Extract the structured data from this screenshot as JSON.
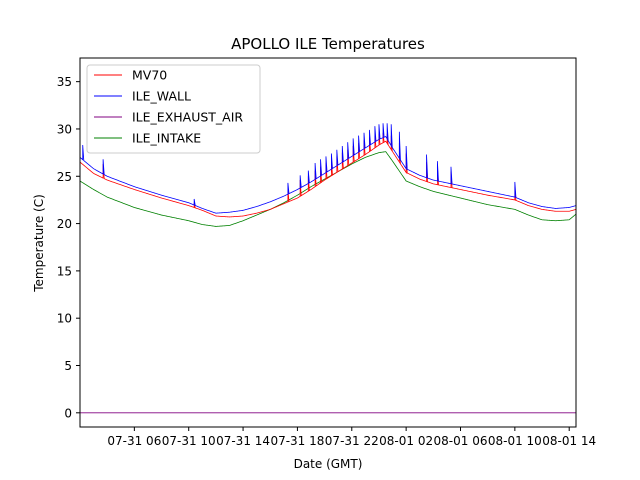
{
  "chart_data": {
    "type": "line",
    "title": "APOLLO ILE Temperatures",
    "xlabel": "Date (GMT)",
    "ylabel": "Temperature (C)",
    "xlim_hours": [
      2.0,
      38.5
    ],
    "ylim": [
      -1.5,
      37.5
    ],
    "yticks": [
      0,
      5,
      10,
      15,
      20,
      25,
      30,
      35
    ],
    "xticks": [
      {
        "hours": 6,
        "label": "07-31 06"
      },
      {
        "hours": 10,
        "label": "07-31 10"
      },
      {
        "hours": 14,
        "label": "07-31 14"
      },
      {
        "hours": 18,
        "label": "07-31 18"
      },
      {
        "hours": 22,
        "label": "07-31 22"
      },
      {
        "hours": 26,
        "label": "08-01 02"
      },
      {
        "hours": 30,
        "label": "08-01 06"
      },
      {
        "hours": 34,
        "label": "08-01 10"
      },
      {
        "hours": 38,
        "label": "08-01 14"
      }
    ],
    "legend_position": "top-left",
    "series": [
      {
        "name": "MV70",
        "color": "#ff0000",
        "x": [
          2.0,
          3.0,
          4.0,
          6.0,
          8.0,
          10.0,
          11.0,
          12.0,
          13.0,
          14.0,
          15.0,
          16.0,
          17.0,
          18.0,
          19.0,
          20.0,
          21.0,
          22.0,
          23.0,
          24.0,
          24.5,
          25.0,
          26.0,
          27.0,
          28.0,
          30.0,
          32.0,
          34.0,
          35.0,
          36.0,
          37.0,
          38.0,
          38.5
        ],
        "values": [
          26.5,
          25.3,
          24.6,
          23.6,
          22.7,
          21.9,
          21.4,
          20.8,
          20.7,
          20.8,
          21.1,
          21.5,
          22.1,
          22.7,
          23.6,
          24.6,
          25.5,
          26.4,
          27.3,
          28.3,
          28.7,
          27.6,
          25.4,
          24.7,
          24.2,
          23.6,
          23.0,
          22.5,
          21.9,
          21.5,
          21.3,
          21.3,
          21.5
        ],
        "spikes": [
          {
            "x": 3.7,
            "y": 26.3
          },
          {
            "x": 10.4,
            "y": 22.2
          },
          {
            "x": 17.3,
            "y": 23.6
          },
          {
            "x": 18.2,
            "y": 24.6
          },
          {
            "x": 18.8,
            "y": 25.0
          },
          {
            "x": 19.3,
            "y": 25.6
          },
          {
            "x": 19.7,
            "y": 26.0
          },
          {
            "x": 20.1,
            "y": 26.4
          },
          {
            "x": 20.5,
            "y": 26.7
          },
          {
            "x": 20.9,
            "y": 27.1
          },
          {
            "x": 21.3,
            "y": 27.5
          },
          {
            "x": 21.7,
            "y": 27.8
          },
          {
            "x": 22.1,
            "y": 28.2
          },
          {
            "x": 22.5,
            "y": 28.5
          },
          {
            "x": 22.9,
            "y": 28.8
          },
          {
            "x": 23.3,
            "y": 29.1
          },
          {
            "x": 23.7,
            "y": 29.3
          },
          {
            "x": 24.0,
            "y": 29.5
          },
          {
            "x": 24.3,
            "y": 29.6
          },
          {
            "x": 24.6,
            "y": 29.5
          },
          {
            "x": 24.9,
            "y": 29.3
          },
          {
            "x": 25.5,
            "y": 28.5
          },
          {
            "x": 26.0,
            "y": 27.4
          },
          {
            "x": 27.5,
            "y": 26.5
          },
          {
            "x": 28.3,
            "y": 26.1
          },
          {
            "x": 29.3,
            "y": 25.5
          },
          {
            "x": 34.0,
            "y": 23.9
          }
        ]
      },
      {
        "name": "ILE_WALL",
        "color": "#0000ff",
        "x": [
          2.0,
          3.0,
          4.0,
          6.0,
          8.0,
          10.0,
          11.0,
          12.0,
          13.0,
          14.0,
          15.0,
          16.0,
          17.0,
          18.0,
          19.0,
          20.0,
          21.0,
          22.0,
          23.0,
          24.0,
          24.5,
          25.0,
          26.0,
          27.0,
          28.0,
          30.0,
          32.0,
          34.0,
          35.0,
          36.0,
          37.0,
          38.0,
          38.5
        ],
        "values": [
          27.0,
          25.8,
          25.0,
          23.9,
          23.0,
          22.2,
          21.6,
          21.1,
          21.2,
          21.4,
          21.8,
          22.3,
          22.9,
          23.6,
          24.4,
          25.3,
          26.2,
          27.1,
          28.0,
          28.9,
          29.2,
          28.0,
          25.8,
          25.1,
          24.6,
          24.0,
          23.4,
          22.8,
          22.2,
          21.8,
          21.6,
          21.7,
          21.9
        ],
        "spikes": [
          {
            "x": 2.2,
            "y": 28.3
          },
          {
            "x": 3.7,
            "y": 26.8
          },
          {
            "x": 10.4,
            "y": 22.6
          },
          {
            "x": 17.3,
            "y": 24.3
          },
          {
            "x": 18.2,
            "y": 25.1
          },
          {
            "x": 18.8,
            "y": 25.6
          },
          {
            "x": 19.3,
            "y": 26.4
          },
          {
            "x": 19.7,
            "y": 26.8
          },
          {
            "x": 20.1,
            "y": 27.1
          },
          {
            "x": 20.5,
            "y": 27.4
          },
          {
            "x": 20.9,
            "y": 27.8
          },
          {
            "x": 21.3,
            "y": 28.2
          },
          {
            "x": 21.7,
            "y": 28.6
          },
          {
            "x": 22.1,
            "y": 29.0
          },
          {
            "x": 22.5,
            "y": 29.3
          },
          {
            "x": 22.9,
            "y": 29.6
          },
          {
            "x": 23.3,
            "y": 29.9
          },
          {
            "x": 23.7,
            "y": 30.3
          },
          {
            "x": 24.0,
            "y": 30.5
          },
          {
            "x": 24.3,
            "y": 30.6
          },
          {
            "x": 24.6,
            "y": 30.6
          },
          {
            "x": 24.9,
            "y": 30.5
          },
          {
            "x": 25.5,
            "y": 29.7
          },
          {
            "x": 26.0,
            "y": 28.2
          },
          {
            "x": 27.5,
            "y": 27.3
          },
          {
            "x": 28.3,
            "y": 26.6
          },
          {
            "x": 29.3,
            "y": 26.0
          },
          {
            "x": 34.0,
            "y": 24.4
          }
        ]
      },
      {
        "name": "ILE_EXHAUST_AIR",
        "color": "#800080",
        "x": [
          2.0,
          38.5
        ],
        "values": [
          0.0,
          0.0
        ],
        "spikes": []
      },
      {
        "name": "ILE_INTAKE",
        "color": "#008000",
        "x": [
          2.0,
          3.0,
          4.0,
          6.0,
          8.0,
          10.0,
          11.0,
          12.0,
          13.0,
          14.0,
          15.0,
          16.0,
          17.0,
          18.0,
          19.0,
          20.0,
          21.0,
          22.0,
          23.0,
          24.0,
          24.5,
          25.0,
          26.0,
          27.0,
          28.0,
          30.0,
          32.0,
          34.0,
          35.0,
          36.0,
          37.0,
          38.0,
          38.5
        ],
        "values": [
          24.5,
          23.6,
          22.8,
          21.7,
          20.9,
          20.3,
          19.9,
          19.7,
          19.8,
          20.3,
          20.9,
          21.5,
          22.2,
          23.0,
          23.9,
          24.7,
          25.5,
          26.3,
          27.0,
          27.5,
          27.6,
          26.6,
          24.5,
          23.9,
          23.4,
          22.7,
          22.0,
          21.5,
          20.9,
          20.4,
          20.3,
          20.4,
          21.0
        ],
        "spikes": []
      }
    ]
  }
}
